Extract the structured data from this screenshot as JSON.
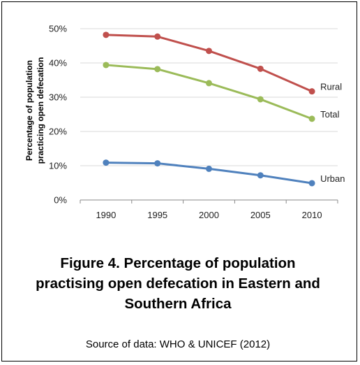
{
  "chart_data": {
    "type": "line",
    "x": [
      1990,
      1995,
      2000,
      2005,
      2010
    ],
    "x_tick_labels": [
      "1990",
      "1995",
      "2000",
      "2005",
      "2010"
    ],
    "ylim": [
      0,
      50
    ],
    "y_tick_values": [
      0,
      10,
      20,
      30,
      40,
      50
    ],
    "y_tick_labels": [
      "0%",
      "10%",
      "20%",
      "30%",
      "40%",
      "50%"
    ],
    "ylabel": "Percentage of population practicing open defecation",
    "ylabel_lines": [
      "Percentage of population",
      "practicing open defecation"
    ],
    "xlabel": "",
    "grid": "horizontal",
    "series": [
      {
        "name": "Rural",
        "color": "#C0504D",
        "values": [
          48.2,
          47.7,
          43.5,
          38.3,
          31.7
        ]
      },
      {
        "name": "Total",
        "color": "#9BBB59",
        "values": [
          39.4,
          38.2,
          34.1,
          29.4,
          23.7
        ]
      },
      {
        "name": "Urban",
        "color": "#4F81BD",
        "values": [
          10.9,
          10.7,
          9.1,
          7.2,
          4.9
        ]
      }
    ]
  },
  "caption": {
    "lines": [
      "Figure 4. Percentage of population",
      "practising open defecation in Eastern and",
      "Southern Africa"
    ],
    "source": "Source of data: WHO & UNICEF (2012)"
  }
}
